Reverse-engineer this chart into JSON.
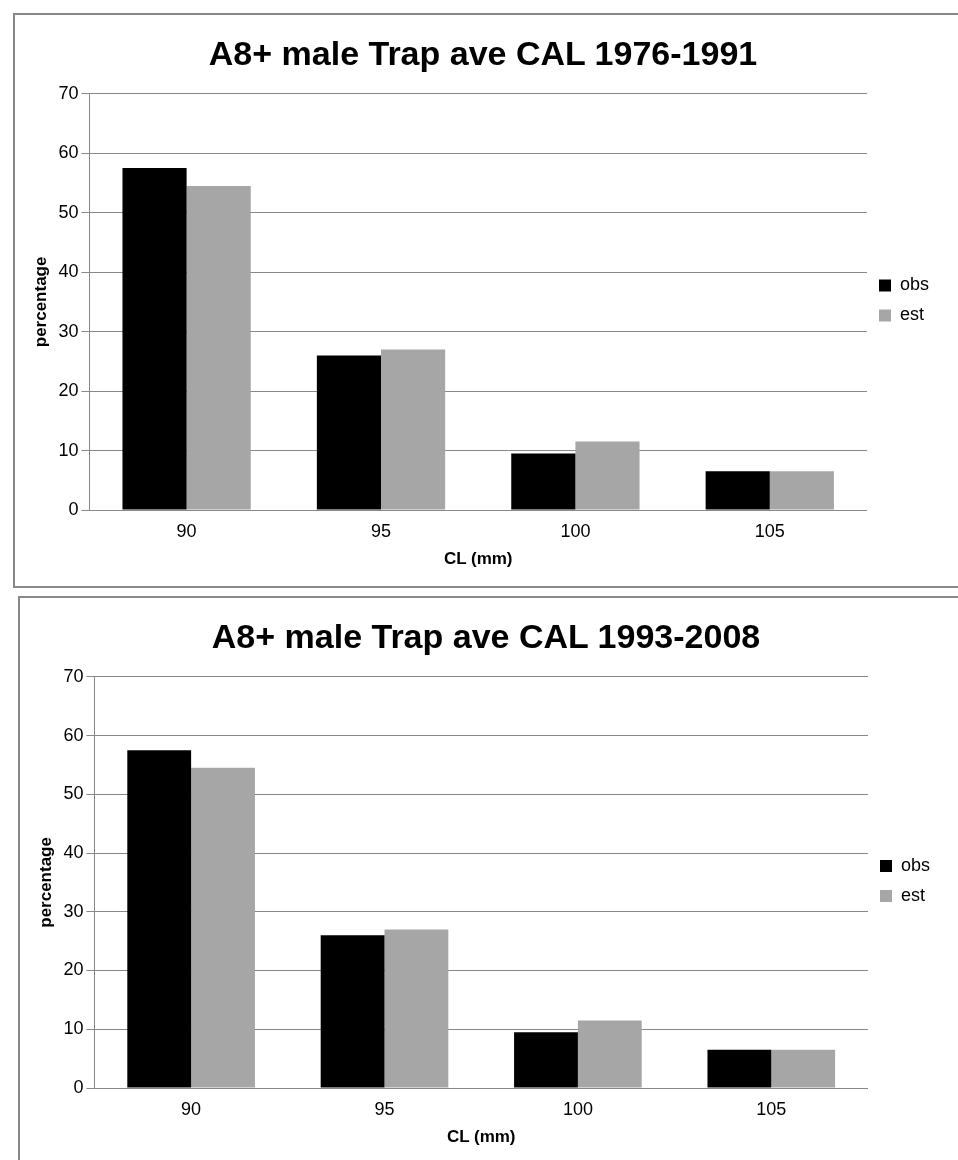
{
  "chart_data": [
    {
      "type": "bar",
      "title": "A8+ male Trap ave CAL 1976-1991",
      "xlabel": "CL (mm)",
      "ylabel": "percentage",
      "categories": [
        "90",
        "95",
        "100",
        "105"
      ],
      "series": [
        {
          "name": "obs",
          "color": "#000000",
          "values": [
            57.5,
            26,
            9.5,
            6.5
          ]
        },
        {
          "name": "est",
          "color": "#a6a6a6",
          "values": [
            54.5,
            27,
            11.5,
            6.5
          ]
        }
      ],
      "ylim": [
        0,
        70
      ],
      "yticks": [
        0,
        10,
        20,
        30,
        40,
        50,
        60,
        70
      ],
      "grid": "y",
      "legend": "right"
    },
    {
      "type": "bar",
      "title": "A8+ male Trap ave CAL 1993-2008",
      "xlabel": "CL (mm)",
      "ylabel": "percentage",
      "categories": [
        "90",
        "95",
        "100",
        "105"
      ],
      "series": [
        {
          "name": "obs",
          "color": "#000000",
          "values": [
            57.5,
            26,
            9.5,
            6.5
          ]
        },
        {
          "name": "est",
          "color": "#a6a6a6",
          "values": [
            54.5,
            27,
            11.5,
            6.5
          ]
        }
      ],
      "ylim": [
        0,
        70
      ],
      "yticks": [
        0,
        10,
        20,
        30,
        40,
        50,
        60,
        70
      ],
      "grid": "y",
      "legend": "right"
    }
  ]
}
